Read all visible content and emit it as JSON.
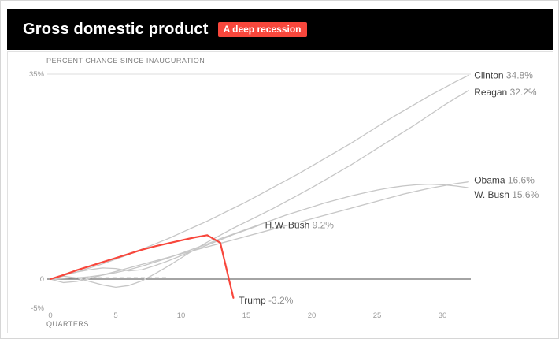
{
  "header": {
    "title": "Gross domestic product",
    "badge": "A deep recession"
  },
  "colors": {
    "header_bg": "#000000",
    "accent_red": "#f8473c",
    "line_gray": "#c6c6c6",
    "axis_dark": "#4a4a4a",
    "grid_light": "#dedede",
    "label_name": "#3f3f3f",
    "label_value": "#8f8f8f",
    "tick_text": "#9b9b9b"
  },
  "chart_data": {
    "type": "line",
    "title": "Gross domestic product",
    "subtitle": "PERCENT CHANGE SINCE INAUGURATION",
    "xlabel": "QUARTERS",
    "ylabel": "Percent change since inauguration",
    "xlim": [
      0,
      32
    ],
    "ylim": [
      -5,
      35
    ],
    "x_ticks": [
      0,
      5,
      10,
      15,
      20,
      25,
      30
    ],
    "y_axis": {
      "ticks": [
        {
          "value": 35,
          "label": "35%"
        },
        {
          "value": 0,
          "label": "0"
        },
        {
          "value": -5,
          "label": "-5%"
        }
      ]
    },
    "grid": "horizontal line at 35% only; solid baseline at 0",
    "legend_position": "end-of-line labels",
    "series": [
      {
        "id": "clinton",
        "name": "Clinton",
        "final_pct": 34.8,
        "value_label": "34.8%",
        "color": "#c6c6c6",
        "emphasis": false,
        "label_dy": 0,
        "values": [
          0,
          0.6,
          1.2,
          1.9,
          2.6,
          3.4,
          4.2,
          5.1,
          6.0,
          6.9,
          7.9,
          8.9,
          9.9,
          11.0,
          12.1,
          13.2,
          14.4,
          15.6,
          16.8,
          18.0,
          19.3,
          20.6,
          21.9,
          23.2,
          24.6,
          26.0,
          27.4,
          28.7,
          30.0,
          31.3,
          32.5,
          33.7,
          34.8
        ]
      },
      {
        "id": "reagan",
        "name": "Reagan",
        "final_pct": 32.2,
        "value_label": "32.2%",
        "color": "#c6c6c6",
        "emphasis": false,
        "label_dy": 2,
        "values": [
          0,
          0.5,
          0.2,
          -0.4,
          -1.0,
          -1.4,
          -1.1,
          -0.3,
          0.9,
          2.2,
          3.6,
          5.0,
          6.3,
          7.5,
          8.7,
          9.8,
          10.9,
          12.0,
          13.2,
          14.4,
          15.6,
          16.9,
          18.2,
          19.5,
          20.9,
          22.3,
          23.7,
          25.1,
          26.5,
          28.0,
          29.5,
          30.9,
          32.2
        ]
      },
      {
        "id": "obama",
        "name": "Obama",
        "final_pct": 16.6,
        "value_label": "16.6%",
        "color": "#c6c6c6",
        "emphasis": false,
        "label_dy": -2,
        "values": [
          0,
          -0.6,
          -0.4,
          0.1,
          0.7,
          1.3,
          1.9,
          2.5,
          3.1,
          3.7,
          4.3,
          4.9,
          5.5,
          6.1,
          6.7,
          7.3,
          7.9,
          8.5,
          9.1,
          9.7,
          10.3,
          10.9,
          11.5,
          12.1,
          12.7,
          13.3,
          13.9,
          14.5,
          15.0,
          15.5,
          15.9,
          16.3,
          16.6
        ]
      },
      {
        "id": "wbush",
        "name": "W. Bush",
        "final_pct": 15.6,
        "value_label": "15.6%",
        "color": "#c6c6c6",
        "emphasis": false,
        "label_dy": 9,
        "values": [
          0,
          0.1,
          0.2,
          0.4,
          0.7,
          1.1,
          1.6,
          2.2,
          2.9,
          3.6,
          4.4,
          5.2,
          6.0,
          6.9,
          7.7,
          8.5,
          9.3,
          10.1,
          10.9,
          11.6,
          12.3,
          13.0,
          13.6,
          14.2,
          14.7,
          15.2,
          15.6,
          15.9,
          16.1,
          16.2,
          16.1,
          15.9,
          15.6
        ]
      },
      {
        "id": "hwbush",
        "name": "H.W. Bush",
        "final_pct": 9.2,
        "value_label": "9.2%",
        "color": "#c6c6c6",
        "emphasis": false,
        "label_dy": 0,
        "values": [
          0,
          0.7,
          1.2,
          1.6,
          1.9,
          1.8,
          1.4,
          1.6,
          2.3,
          3.1,
          4.0,
          4.9,
          5.8,
          6.7,
          7.6,
          8.4,
          9.2
        ]
      },
      {
        "id": "trump",
        "name": "Trump",
        "final_pct": -3.2,
        "value_label": "-3.2%",
        "color": "#f8473c",
        "emphasis": true,
        "label_dy": 3,
        "values": [
          0,
          0.7,
          1.5,
          2.2,
          2.9,
          3.6,
          4.3,
          5.0,
          5.6,
          6.1,
          6.6,
          7.1,
          7.5,
          6.2,
          -3.2
        ]
      }
    ]
  }
}
